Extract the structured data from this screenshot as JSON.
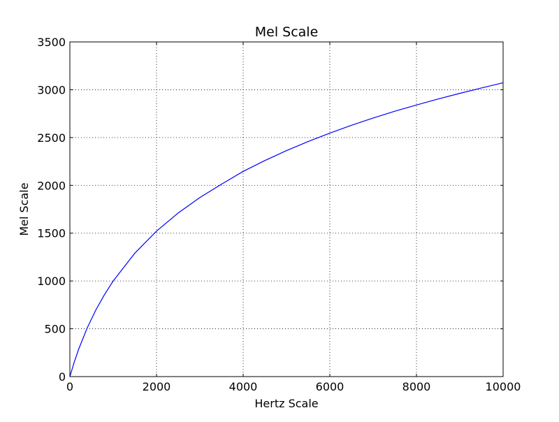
{
  "chart_data": {
    "type": "line",
    "title": "Mel Scale",
    "xlabel": "Hertz Scale",
    "ylabel": "Mel Scale",
    "xlim": [
      0,
      10000
    ],
    "ylim": [
      0,
      3500
    ],
    "xticks": [
      0,
      2000,
      4000,
      6000,
      8000,
      10000
    ],
    "yticks": [
      0,
      500,
      1000,
      1500,
      2000,
      2500,
      3000,
      3500
    ],
    "grid": true,
    "series": [
      {
        "color": "#0000ff",
        "x": [
          0,
          100,
          200,
          400,
          600,
          800,
          1000,
          1500,
          2000,
          2500,
          3000,
          3500,
          4000,
          4500,
          5000,
          5500,
          6000,
          6500,
          7000,
          7500,
          8000,
          8500,
          9000,
          9500,
          10000
        ],
        "y": [
          0,
          150,
          283,
          509,
          697,
          858,
          1000,
          1291,
          1521,
          1711,
          1872,
          2012,
          2146,
          2259,
          2363,
          2458,
          2546,
          2628,
          2704,
          2775,
          2840,
          2903,
          2962,
          3018,
          3073
        ]
      }
    ]
  }
}
